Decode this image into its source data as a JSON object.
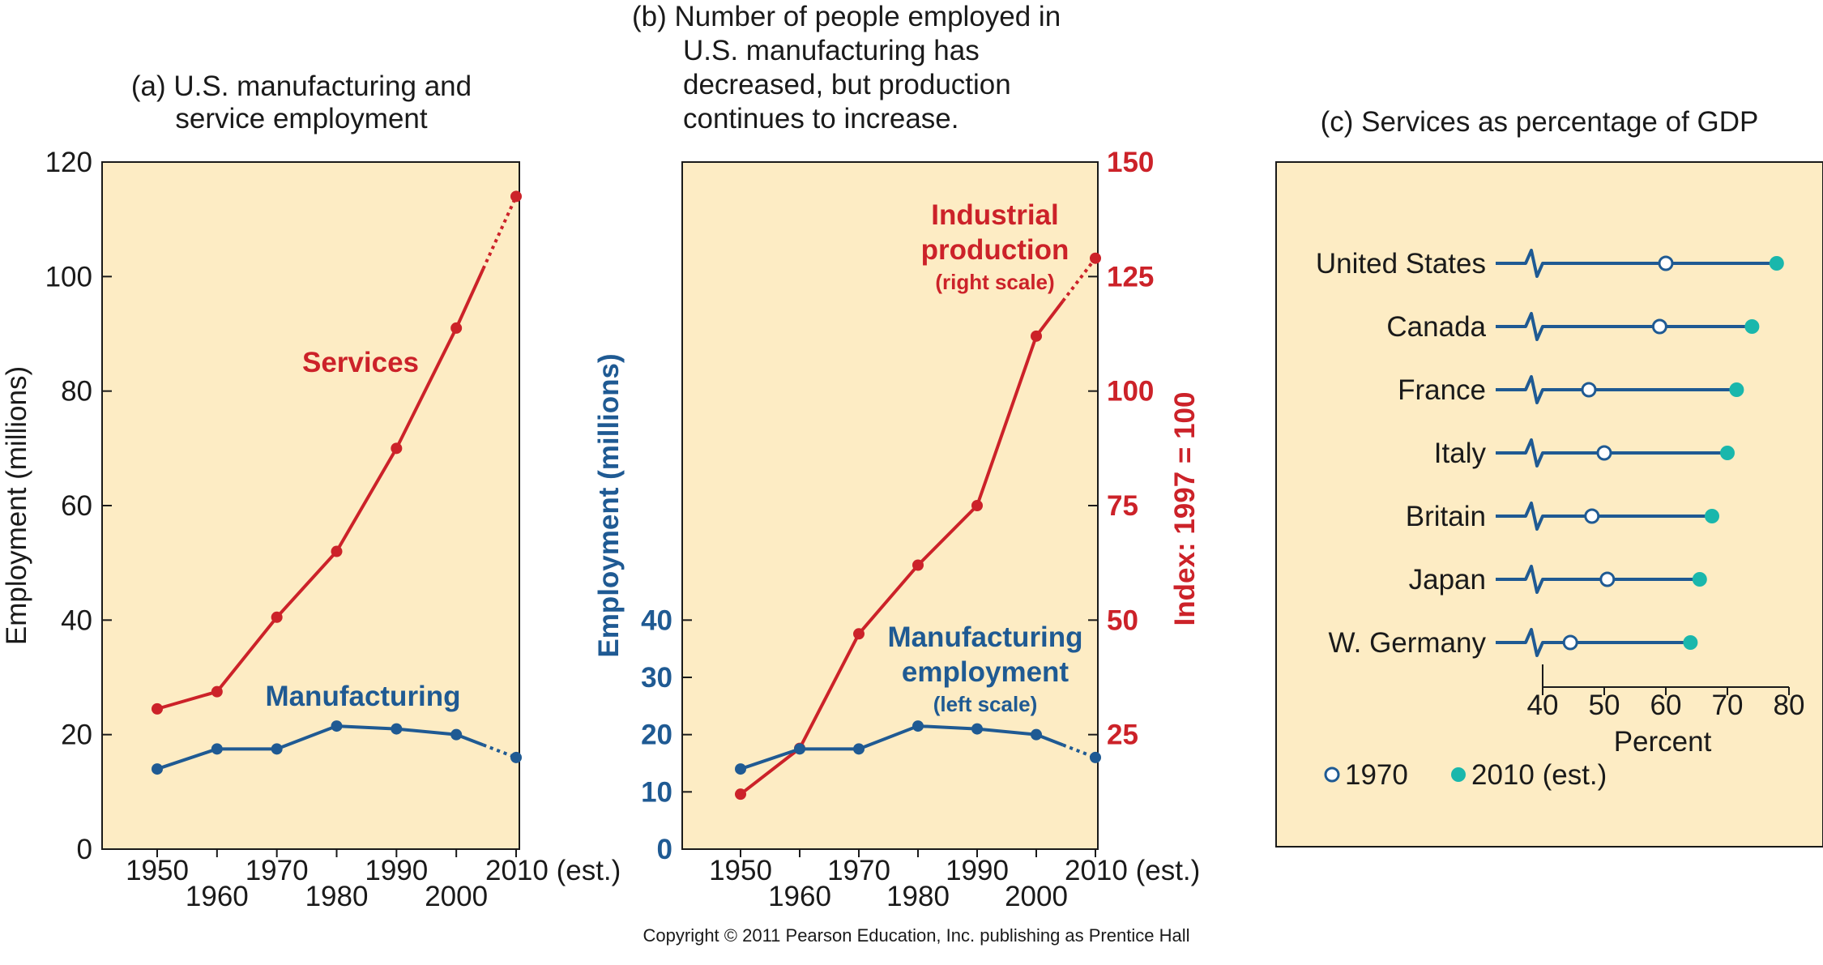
{
  "copyright": "Copyright © 2011 Pearson Education, Inc. publishing as Prentice Hall",
  "colors": {
    "panel_bg": "#fdecc4",
    "services": "#cc2229",
    "manufacturing": "#1f5a93",
    "teal": "#1ab7ac"
  },
  "chart_data": [
    {
      "id": "a",
      "type": "line",
      "title": [
        "(a) U.S. manufacturing and",
        "service employment"
      ],
      "ylabel": "Employment (millions)",
      "ylim": [
        0,
        120
      ],
      "yticks": [
        "0",
        "20",
        "40",
        "60",
        "80",
        "100",
        "120"
      ],
      "xticks_top": [
        "1950",
        "1970",
        "1990",
        "2010 (est.)"
      ],
      "xticks_bottom": [
        "1960",
        "1980",
        "2000"
      ],
      "x": [
        1950,
        1960,
        1970,
        1980,
        1990,
        2000,
        2010
      ],
      "series": [
        {
          "name": "Services",
          "values": [
            24.5,
            27.5,
            40.5,
            52,
            70,
            91,
            114
          ],
          "estimate_from_index": 5
        },
        {
          "name": "Manufacturing",
          "values": [
            14,
            17.5,
            17.5,
            21.5,
            21,
            20,
            16
          ],
          "estimate_from_index": 5
        }
      ]
    },
    {
      "id": "b",
      "type": "line",
      "title": [
        "(b) Number of people employed in",
        "U.S. manufacturing has",
        "decreased, but production",
        "continues to increase."
      ],
      "ylabel_left": "Employment (millions)",
      "ylabel_right": "Index: 1997 = 100",
      "ylim_left": [
        0,
        120
      ],
      "yticks_left": [
        "0",
        "10",
        "20",
        "30",
        "40"
      ],
      "ylim_right": [
        0,
        150
      ],
      "yticks_right": [
        "25",
        "50",
        "75",
        "100",
        "125",
        "150"
      ],
      "xticks_top": [
        "1950",
        "1970",
        "1990",
        "2010 (est.)"
      ],
      "xticks_bottom": [
        "1960",
        "1980",
        "2000"
      ],
      "x": [
        1950,
        1960,
        1970,
        1980,
        1990,
        2000,
        2010
      ],
      "series": [
        {
          "name": "Industrial production",
          "sublabel": "(right scale)",
          "label_lines": [
            "Industrial",
            "production"
          ],
          "axis": "right",
          "values": [
            12,
            22,
            47,
            62,
            75,
            112,
            129
          ],
          "estimate_from_index": 5
        },
        {
          "name": "Manufacturing employment",
          "sublabel": "(left scale)",
          "label_lines": [
            "Manufacturing",
            "employment"
          ],
          "axis": "left",
          "values": [
            14,
            17.5,
            17.5,
            21.5,
            21,
            20,
            16
          ],
          "estimate_from_index": 5
        }
      ]
    },
    {
      "id": "c",
      "type": "dot",
      "title": "(c) Services as percentage of GDP",
      "xlabel": "Percent",
      "xlim": [
        40,
        80
      ],
      "xticks": [
        "40",
        "50",
        "60",
        "70",
        "80"
      ],
      "legend": [
        "1970",
        "2010 (est.)"
      ],
      "categories": [
        "United States",
        "Canada",
        "France",
        "Italy",
        "Britain",
        "Japan",
        "W. Germany"
      ],
      "series": [
        {
          "name": "1970",
          "values": [
            60,
            59,
            47.5,
            50,
            48,
            50.5,
            44.5
          ]
        },
        {
          "name": "2010 (est.)",
          "values": [
            78,
            74,
            71.5,
            70,
            67.5,
            65.5,
            64
          ]
        }
      ]
    }
  ]
}
